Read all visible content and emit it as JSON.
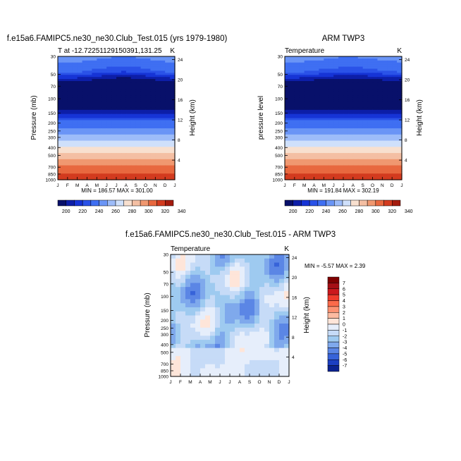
{
  "chart_data": [
    {
      "type": "heatmap",
      "title": "f.e15a6.FAMIPC5.ne30_ne30.Club_Test.015 (yrs 1979-1980)",
      "subtitle_left": "T at -12.72251129150391,131.25",
      "subtitle_right": "K",
      "ylabel": "Pressure (mb)",
      "ylabel_right": "Height (km)",
      "x_months": [
        "J",
        "F",
        "M",
        "A",
        "M",
        "J",
        "J",
        "A",
        "S",
        "O",
        "N",
        "D",
        "J"
      ],
      "y_pressure_ticks": [
        30,
        50,
        70,
        100,
        150,
        200,
        250,
        300,
        400,
        500,
        700,
        850,
        1000
      ],
      "y_height_ticks": [
        4,
        8,
        12,
        16,
        20,
        24
      ],
      "stats": "MIN = 186.57 MAX = 301.00",
      "min": 186.57,
      "max": 301.0,
      "colorbar_labels": [
        "200",
        "220",
        "240",
        "260",
        "280",
        "300",
        "320",
        "340"
      ]
    },
    {
      "type": "heatmap",
      "title": "ARM TWP3",
      "subtitle_left": "Temperature",
      "subtitle_right": "K",
      "ylabel": "pressure level",
      "ylabel_right": "Height (km)",
      "x_months": [
        "J",
        "F",
        "M",
        "A",
        "M",
        "J",
        "J",
        "A",
        "S",
        "O",
        "N",
        "D",
        "J"
      ],
      "y_pressure_ticks": [
        30,
        50,
        70,
        100,
        150,
        200,
        250,
        300,
        400,
        500,
        700,
        850,
        1000
      ],
      "y_height_ticks": [
        4,
        8,
        12,
        16,
        20,
        24
      ],
      "stats": "MIN = 191.84 MAX = 302.19",
      "min": 191.84,
      "max": 302.19,
      "colorbar_labels": [
        "200",
        "220",
        "240",
        "260",
        "280",
        "300",
        "320",
        "340"
      ]
    },
    {
      "type": "heatmap",
      "title": "f.e15a6.FAMIPC5.ne30_ne30.Club_Test.015 - ARM TWP3",
      "subtitle_left": "Temperature",
      "subtitle_right": "K",
      "ylabel": "Pressure (mb)",
      "ylabel_right": "Height (km)",
      "x_months": [
        "J",
        "F",
        "M",
        "A",
        "M",
        "J",
        "J",
        "A",
        "S",
        "O",
        "N",
        "D",
        "J"
      ],
      "y_pressure_ticks": [
        30,
        50,
        70,
        100,
        150,
        200,
        250,
        300,
        400,
        500,
        700,
        850,
        1000
      ],
      "y_height_ticks": [
        4,
        8,
        12,
        16,
        20,
        24
      ],
      "stats": "MIN =  -5.57 MAX =   2.39",
      "min": -5.57,
      "max": 2.39,
      "colorbar_labels": [
        "7",
        "6",
        "5",
        "4",
        "3",
        "2",
        "1",
        "0",
        "-1",
        "-2",
        "-3",
        "-4",
        "-5",
        "-6",
        "-7"
      ]
    }
  ],
  "colors": {
    "abs_scale": [
      "#08106a",
      "#0d1ea8",
      "#1634d6",
      "#2a52e8",
      "#3f6ff2",
      "#6a95f6",
      "#9dbcf9",
      "#cfe0fb",
      "#f8e0cf",
      "#f4bfa3",
      "#f09870",
      "#e8683f",
      "#d33b1f",
      "#a41b0e"
    ],
    "diff_scale": [
      "#7f0000",
      "#a50f15",
      "#cb181d",
      "#ef3b2c",
      "#fb6a4a",
      "#fc9272",
      "#fcbba1",
      "#fee5d9",
      "#e6eefb",
      "#c6dbf7",
      "#9ecaf0",
      "#7fa9ec",
      "#5b86e5",
      "#3763d9",
      "#1c3fc2",
      "#0b2391"
    ]
  }
}
